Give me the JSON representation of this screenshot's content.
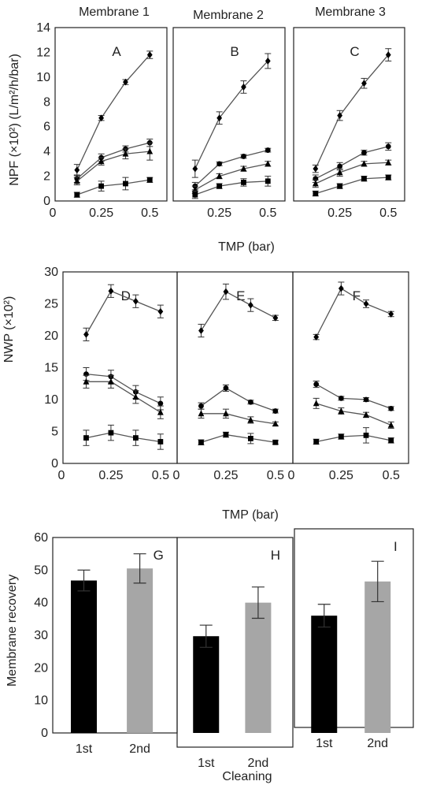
{
  "figure": {
    "membrane_titles": [
      "Membrane 1",
      "Membrane 2",
      "Membrane 3"
    ]
  },
  "rows": [
    {
      "ylabel": "NPF (×10²) (L/m²/h/bar)",
      "xlabel": "TMP  (bar)",
      "ylim": [
        0,
        14
      ],
      "yticks": [
        "0",
        "2",
        "4",
        "6",
        "8",
        "10",
        "12",
        "14"
      ],
      "xticks_first": [
        "0",
        "0.25",
        "0.5"
      ],
      "xticks": [
        "0.25",
        "0.5"
      ]
    },
    {
      "ylabel": "NWP (×10²)",
      "xlabel": "TMP  (bar)",
      "ylim": [
        0,
        30
      ],
      "yticks": [
        "0",
        "5",
        "10",
        "15",
        "20",
        "25",
        "30"
      ],
      "xticks_first": [
        "0",
        "0.25",
        "0.5"
      ],
      "xticks": [
        "0",
        "0.25",
        "0.5"
      ]
    },
    {
      "ylabel": "Membrane recovery",
      "xlabel": "Cleaning",
      "ylim": [
        0,
        60
      ],
      "yticks": [
        "0",
        "10",
        "20",
        "30",
        "40",
        "50",
        "60"
      ],
      "categories": [
        "1st",
        "2nd"
      ]
    }
  ],
  "chart_data": [
    {
      "type": "line",
      "panel": "A",
      "x": [
        0.125,
        0.25,
        0.375,
        0.5
      ],
      "xlim": [
        0,
        0.58
      ],
      "ylim": [
        0,
        14
      ],
      "series": [
        {
          "marker": "diamond",
          "values": [
            2.5,
            6.7,
            9.6,
            11.8
          ],
          "err": [
            0.45,
            0.2,
            0.2,
            0.3
          ]
        },
        {
          "marker": "circle",
          "values": [
            1.8,
            3.5,
            4.2,
            4.7
          ],
          "err": [
            0.3,
            0.3,
            0.25,
            0.3
          ]
        },
        {
          "marker": "triangle",
          "values": [
            1.6,
            3.2,
            3.8,
            4.0
          ],
          "err": [
            0.3,
            0.3,
            0.4,
            0.7
          ]
        },
        {
          "marker": "square",
          "values": [
            0.5,
            1.2,
            1.4,
            1.7
          ],
          "err": [
            0.2,
            0.4,
            0.5,
            0.2
          ]
        }
      ]
    },
    {
      "type": "line",
      "panel": "B",
      "x": [
        0.125,
        0.25,
        0.375,
        0.5
      ],
      "xlim": [
        0,
        0.58
      ],
      "ylim": [
        0,
        14
      ],
      "series": [
        {
          "marker": "diamond",
          "values": [
            2.6,
            6.7,
            9.2,
            11.3
          ],
          "err": [
            0.7,
            0.5,
            0.5,
            0.6
          ]
        },
        {
          "marker": "circle",
          "values": [
            1.2,
            3.0,
            3.6,
            4.1
          ],
          "err": [
            0.3,
            0.15,
            0.15,
            0.15
          ]
        },
        {
          "marker": "triangle",
          "values": [
            0.9,
            2.0,
            2.6,
            3.0
          ],
          "err": [
            0.3,
            0.2,
            0.2,
            0.2
          ]
        },
        {
          "marker": "square",
          "values": [
            0.5,
            1.2,
            1.5,
            1.6
          ],
          "err": [
            0.3,
            0.2,
            0.3,
            0.4
          ]
        }
      ]
    },
    {
      "type": "line",
      "panel": "C",
      "x": [
        0.125,
        0.25,
        0.375,
        0.5
      ],
      "xlim": [
        0,
        0.58
      ],
      "ylim": [
        0,
        14
      ],
      "series": [
        {
          "marker": "diamond",
          "values": [
            2.6,
            6.9,
            9.5,
            11.8
          ],
          "err": [
            0.3,
            0.4,
            0.4,
            0.5
          ]
        },
        {
          "marker": "circle",
          "values": [
            1.8,
            2.8,
            3.9,
            4.4
          ],
          "err": [
            0.3,
            0.3,
            0.2,
            0.3
          ]
        },
        {
          "marker": "triangle",
          "values": [
            1.4,
            2.3,
            3.0,
            3.1
          ],
          "err": [
            0.3,
            0.3,
            0.2,
            0.2
          ]
        },
        {
          "marker": "square",
          "values": [
            0.6,
            1.2,
            1.8,
            1.9
          ],
          "err": [
            0.2,
            0.2,
            0.2,
            0.2
          ]
        }
      ]
    },
    {
      "type": "line",
      "panel": "D",
      "x": [
        0.125,
        0.25,
        0.375,
        0.5
      ],
      "xlim": [
        0,
        0.58
      ],
      "ylim": [
        0,
        30
      ],
      "series": [
        {
          "marker": "diamond",
          "values": [
            20.2,
            27.0,
            25.4,
            23.8
          ],
          "err": [
            1.0,
            1.0,
            1.0,
            1.0
          ]
        },
        {
          "marker": "circle",
          "values": [
            14.0,
            13.6,
            11.2,
            9.4
          ],
          "err": [
            1.0,
            1.0,
            1.0,
            1.0
          ]
        },
        {
          "marker": "triangle",
          "values": [
            12.8,
            12.8,
            10.4,
            8.0
          ],
          "err": [
            1.0,
            1.0,
            1.0,
            1.0
          ]
        },
        {
          "marker": "square",
          "values": [
            4.0,
            4.8,
            4.0,
            3.4
          ],
          "err": [
            1.2,
            1.2,
            1.2,
            1.2
          ]
        }
      ]
    },
    {
      "type": "line",
      "panel": "E",
      "x": [
        0.125,
        0.25,
        0.375,
        0.5
      ],
      "xlim": [
        0,
        0.58
      ],
      "ylim": [
        0,
        30
      ],
      "series": [
        {
          "marker": "diamond",
          "values": [
            20.8,
            26.9,
            24.8,
            22.8
          ],
          "err": [
            1.0,
            1.2,
            1.0,
            0.4
          ]
        },
        {
          "marker": "circle",
          "values": [
            9.0,
            11.8,
            9.6,
            8.2
          ],
          "err": [
            0.5,
            0.5,
            0.3,
            0.3
          ]
        },
        {
          "marker": "triangle",
          "values": [
            7.8,
            7.8,
            6.8,
            6.2
          ],
          "err": [
            0.7,
            0.7,
            0.5,
            0.3
          ]
        },
        {
          "marker": "square",
          "values": [
            3.3,
            4.5,
            3.9,
            3.3
          ],
          "err": [
            0.4,
            0.4,
            0.8,
            0.3
          ]
        }
      ]
    },
    {
      "type": "line",
      "panel": "F",
      "x": [
        0.125,
        0.25,
        0.375,
        0.5
      ],
      "xlim": [
        0,
        0.58
      ],
      "ylim": [
        0,
        30
      ],
      "series": [
        {
          "marker": "diamond",
          "values": [
            19.8,
            27.4,
            25.0,
            23.4
          ],
          "err": [
            0.4,
            1.0,
            0.6,
            0.4
          ]
        },
        {
          "marker": "circle",
          "values": [
            12.4,
            10.2,
            10.0,
            8.6
          ],
          "err": [
            0.5,
            0.3,
            0.3,
            0.3
          ]
        },
        {
          "marker": "triangle",
          "values": [
            9.4,
            8.2,
            7.6,
            6.0
          ],
          "err": [
            0.8,
            0.5,
            0.4,
            0.5
          ]
        },
        {
          "marker": "square",
          "values": [
            3.4,
            4.2,
            4.4,
            3.6
          ],
          "err": [
            0.4,
            0.4,
            1.2,
            0.4
          ]
        }
      ]
    },
    {
      "type": "bar",
      "panel": "G",
      "categories": [
        "1st",
        "2nd"
      ],
      "values": [
        46.8,
        50.5
      ],
      "err": [
        3.2,
        4.5
      ],
      "colors": [
        "#000000",
        "#a6a6a6"
      ],
      "ylim": [
        0,
        60
      ]
    },
    {
      "type": "bar",
      "panel": "H",
      "categories": [
        "1st",
        "2nd"
      ],
      "values": [
        29.7,
        40.0
      ],
      "err": [
        3.4,
        4.8
      ],
      "colors": [
        "#000000",
        "#a6a6a6"
      ],
      "ylim": [
        0,
        60
      ]
    },
    {
      "type": "bar",
      "panel": "I",
      "categories": [
        "1st",
        "2nd"
      ],
      "values": [
        36.0,
        46.5
      ],
      "err": [
        3.5,
        6.2
      ],
      "colors": [
        "#000000",
        "#a6a6a6"
      ],
      "ylim": [
        0,
        60
      ]
    }
  ]
}
